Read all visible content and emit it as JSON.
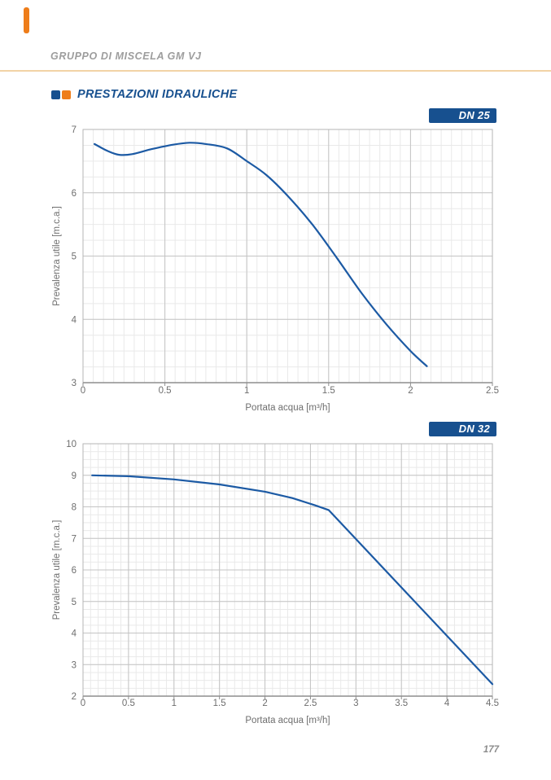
{
  "page": {
    "header_title": "GRUPPO DI MISCELA GM VJ",
    "section_title": "PRESTAZIONI IDRAULICHE",
    "page_number": "177",
    "icons": [
      "blue-square",
      "orange-square"
    ],
    "colors": {
      "accent_blue": "#17508F",
      "accent_orange": "#EE7D1A",
      "divider_tan": "#F2D3A5",
      "curve": "#1C5AA4",
      "header_gray": "#9D9D9D",
      "label_gray": "#6E6E6E"
    }
  },
  "chart_data": [
    {
      "type": "line",
      "badge": "DN 25",
      "xlabel": "Portata acqua [m³/h]",
      "ylabel": "Prevalenza utile [m.c.a.]",
      "xlim": [
        0,
        2.5
      ],
      "ylim": [
        3,
        7
      ],
      "x_major": 0.5,
      "x_minor": 0.0625,
      "y_major": 1,
      "y_minor": 0.25,
      "x_ticks": [
        "0",
        "0.5",
        "1",
        "1.5",
        "2",
        "2.5"
      ],
      "y_ticks": [
        "3",
        "4",
        "5",
        "6",
        "7"
      ],
      "grid": true,
      "legend": "none",
      "series": [
        {
          "name": "DN 25",
          "interp": "smooth",
          "points": [
            [
              0.07,
              6.77
            ],
            [
              0.15,
              6.66
            ],
            [
              0.22,
              6.6
            ],
            [
              0.3,
              6.61
            ],
            [
              0.42,
              6.69
            ],
            [
              0.55,
              6.76
            ],
            [
              0.65,
              6.79
            ],
            [
              0.75,
              6.77
            ],
            [
              0.88,
              6.7
            ],
            [
              1.0,
              6.5
            ],
            [
              1.12,
              6.28
            ],
            [
              1.25,
              5.95
            ],
            [
              1.4,
              5.5
            ],
            [
              1.55,
              4.97
            ],
            [
              1.7,
              4.42
            ],
            [
              1.85,
              3.93
            ],
            [
              2.0,
              3.5
            ],
            [
              2.1,
              3.26
            ]
          ]
        }
      ]
    },
    {
      "type": "line",
      "badge": "DN 32",
      "xlabel": "Portata acqua [m³/h]",
      "ylabel": "Prevalenza utile [m.c.a.]",
      "xlim": [
        0,
        4.5
      ],
      "ylim": [
        2,
        10
      ],
      "x_major": 0.5,
      "x_minor": 0.08333,
      "y_major": 1,
      "y_minor": 0.25,
      "x_ticks": [
        "0",
        "0.5",
        "1",
        "1.5",
        "2",
        "2.5",
        "3",
        "3.5",
        "4",
        "4.5"
      ],
      "y_ticks": [
        "2",
        "3",
        "4",
        "5",
        "6",
        "7",
        "8",
        "9",
        "10"
      ],
      "grid": true,
      "legend": "none",
      "series": [
        {
          "name": "DN 32",
          "interp": "linear",
          "points": [
            [
              0.1,
              9.0
            ],
            [
              0.5,
              8.97
            ],
            [
              1.0,
              8.87
            ],
            [
              1.5,
              8.71
            ],
            [
              2.0,
              8.48
            ],
            [
              2.3,
              8.28
            ],
            [
              2.55,
              8.05
            ],
            [
              2.7,
              7.9
            ],
            [
              4.5,
              2.38
            ]
          ]
        }
      ]
    }
  ]
}
